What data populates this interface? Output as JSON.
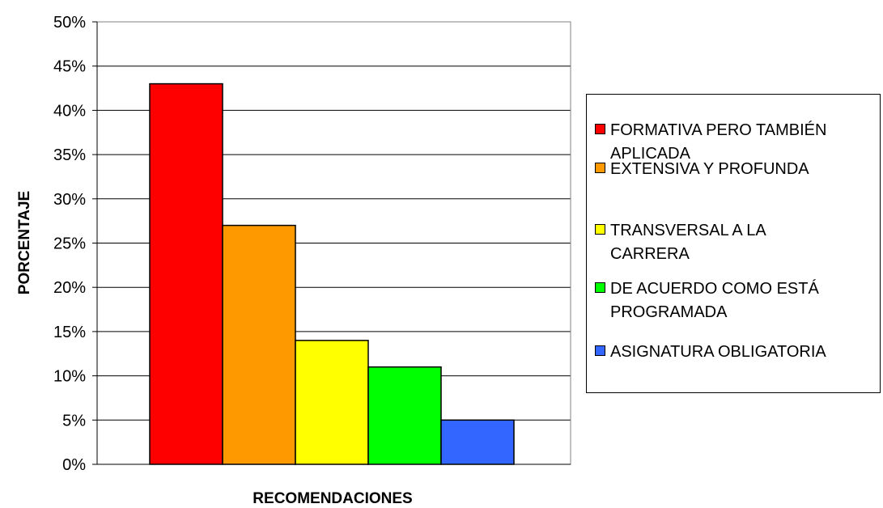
{
  "chart_data": {
    "type": "bar",
    "title": "",
    "xlabel": "RECOMENDACIONES",
    "ylabel": "PORCENTAJE",
    "ylim": [
      0,
      50
    ],
    "y_unit": "%",
    "yticks": [
      "0%",
      "5%",
      "10%",
      "15%",
      "20%",
      "25%",
      "30%",
      "35%",
      "40%",
      "45%",
      "50%"
    ],
    "grid": true,
    "legend_position": "right",
    "series": [
      {
        "name": "FORMATIVA PERO TAMBIÉN\nAPLICADA",
        "value": 43,
        "color": "#ff0000"
      },
      {
        "name": "EXTENSIVA  Y  PROFUNDA",
        "value": 27,
        "color": "#ff9900"
      },
      {
        "name": "TRANSVERSAL A LA\nCARRERA",
        "value": 14,
        "color": "#ffff00"
      },
      {
        "name": "DE ACUERDO COMO ESTÁ\nPROGRAMADA",
        "value": 11,
        "color": "#00ff00"
      },
      {
        "name": "ASIGNATURA  OBLIGATORIA",
        "value": 5,
        "color": "#3366ff"
      }
    ]
  }
}
